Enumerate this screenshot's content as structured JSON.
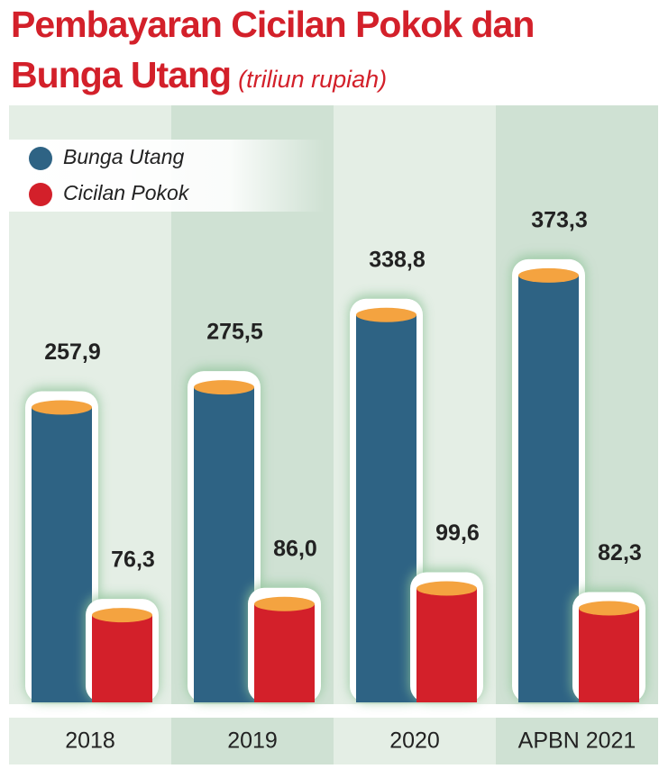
{
  "chart_data": {
    "type": "bar",
    "title": "Pembayaran Cicilan Pokok dan Bunga Utang",
    "subtitle": "(triliun rupiah)",
    "categories": [
      "2018",
      "2019",
      "2020",
      "APBN 2021"
    ],
    "series": [
      {
        "name": "Bunga Utang",
        "color": "#2e6384",
        "values": [
          257.9,
          275.5,
          338.8,
          373.3
        ],
        "value_labels": [
          "257,9",
          "275,5",
          "338,8",
          "373,3"
        ]
      },
      {
        "name": "Cicilan Pokok",
        "color": "#d3202a",
        "values": [
          76.3,
          86.0,
          99.6,
          82.3
        ],
        "value_labels": [
          "76,3",
          "86,0",
          "99,6",
          "82,3"
        ]
      }
    ]
  }
}
